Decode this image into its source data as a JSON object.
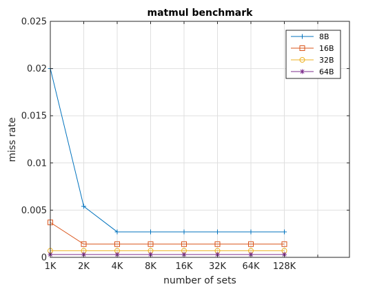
{
  "chart_data": {
    "type": "line",
    "title": "matmul benchmark",
    "xlabel": "number of sets",
    "ylabel": "miss rate",
    "categories": [
      "1K",
      "2K",
      "4K",
      "8K",
      "16K",
      "32K",
      "64K",
      "128K"
    ],
    "ylim": [
      0,
      0.025
    ],
    "yticks": [
      "0",
      "0.005",
      "0.01",
      "0.015",
      "0.02",
      "0.025"
    ],
    "grid": true,
    "legend_position": "top-right",
    "series": [
      {
        "name": "8B",
        "color": "#0072bd",
        "marker": "plus",
        "values": [
          0.02,
          0.0054,
          0.0027,
          0.0027,
          0.0027,
          0.0027,
          0.0027,
          0.0027
        ]
      },
      {
        "name": "16B",
        "color": "#d95319",
        "marker": "square",
        "values": [
          0.0037,
          0.0014,
          0.0014,
          0.0014,
          0.0014,
          0.0014,
          0.0014,
          0.0014
        ]
      },
      {
        "name": "32B",
        "color": "#edb120",
        "marker": "circle",
        "values": [
          0.0007,
          0.0007,
          0.0007,
          0.0007,
          0.0007,
          0.0007,
          0.0007,
          0.0007
        ]
      },
      {
        "name": "64B",
        "color": "#7e2f8e",
        "marker": "asterisk",
        "values": [
          0.0003,
          0.0003,
          0.0003,
          0.0003,
          0.0003,
          0.0003,
          0.0003,
          0.0003
        ]
      }
    ]
  }
}
